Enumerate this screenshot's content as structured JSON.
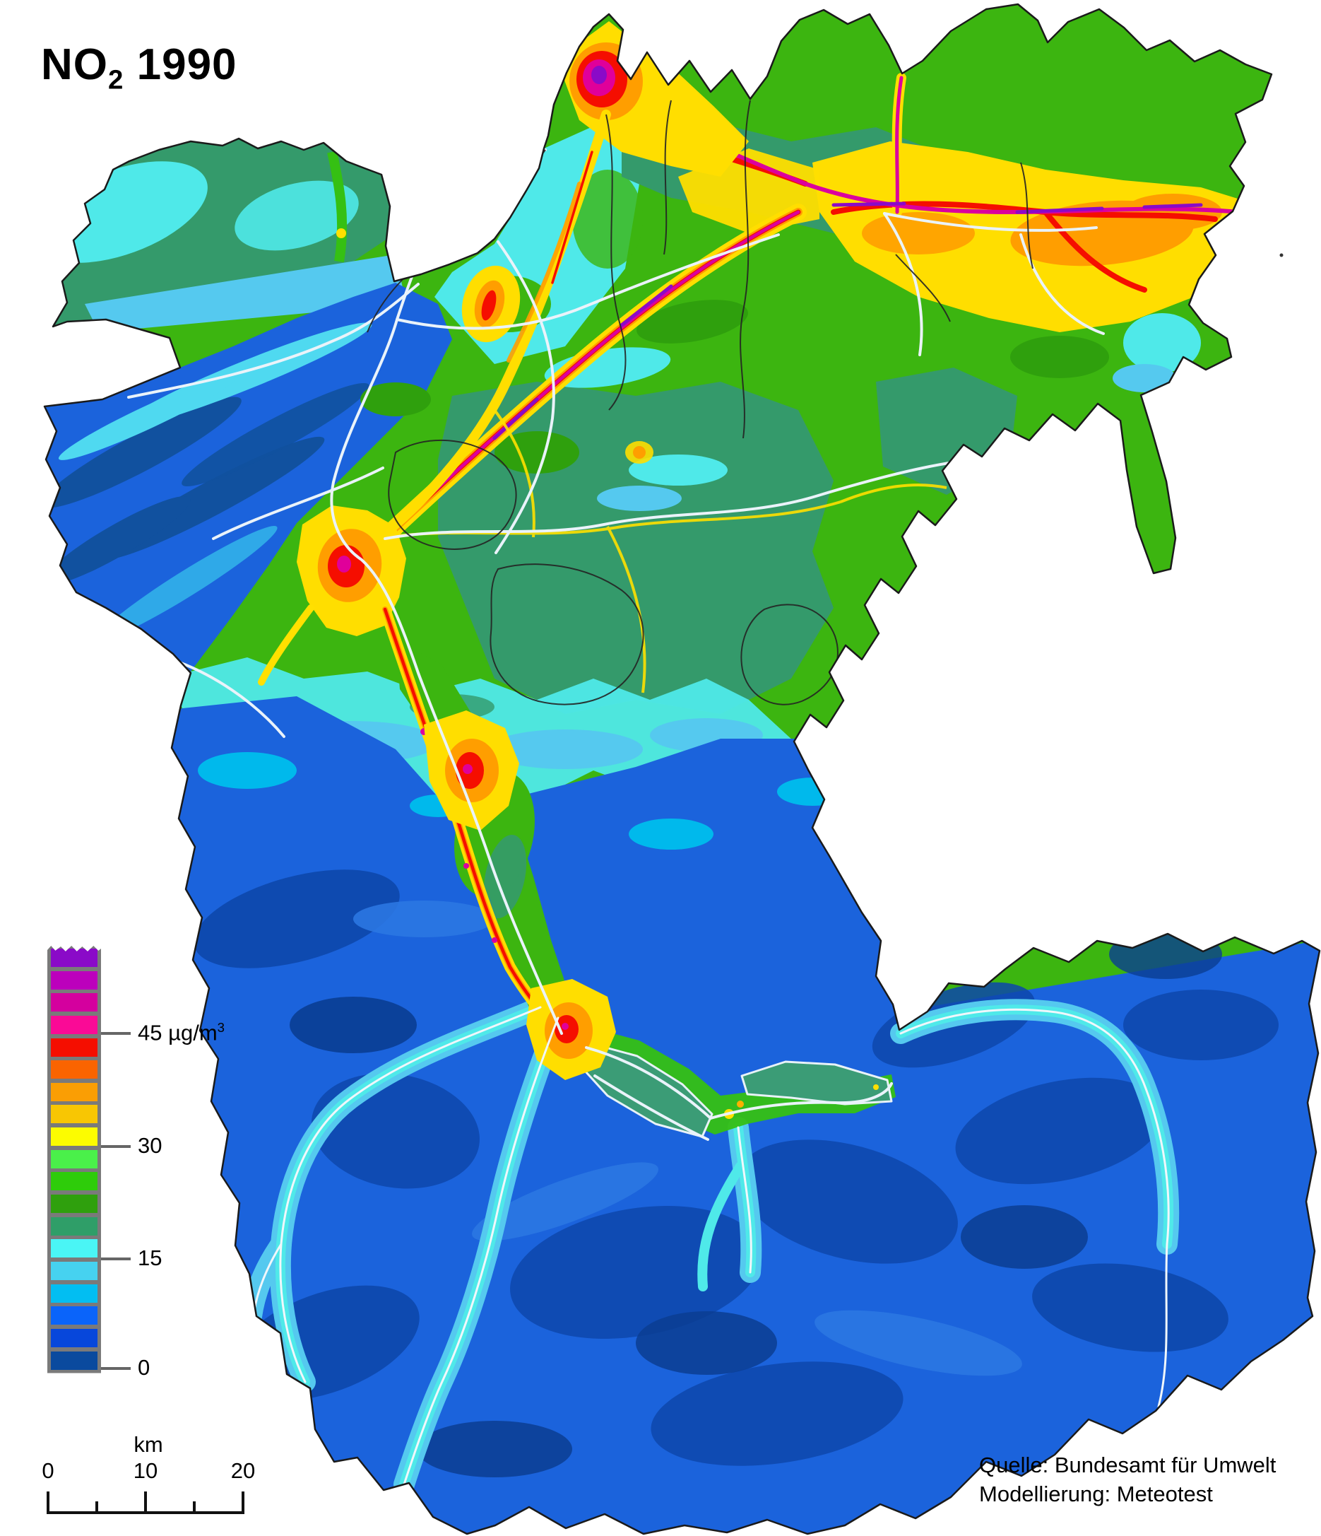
{
  "title": {
    "formula": "NO",
    "subscript": "2",
    "year": " 1990"
  },
  "legend": {
    "unit_label": {
      "value": "45 ",
      "unit": "µg/m",
      "exponent": "3"
    },
    "tick_30": "30",
    "tick_15": "15",
    "tick_0": "0",
    "colors": [
      "#8A0AC8",
      "#BC00BC",
      "#D4009E",
      "#FA0A96",
      "#F50E00",
      "#FA6400",
      "#FA9E04",
      "#F8C603",
      "#FCFC00",
      "#4AF04A",
      "#2ECC0A",
      "#2FA00D",
      "#2F9E68",
      "#4AF5F5",
      "#46D2F0",
      "#02BEF2",
      "#0A64FA",
      "#0747DB",
      "#0A4A9E"
    ]
  },
  "scalebar": {
    "unit": "km",
    "ticks": [
      "0",
      "10",
      "20"
    ]
  },
  "credits": {
    "line1": "Quelle: Bundesamt für Umwelt",
    "line2": "Modellierung: Meteotest"
  }
}
